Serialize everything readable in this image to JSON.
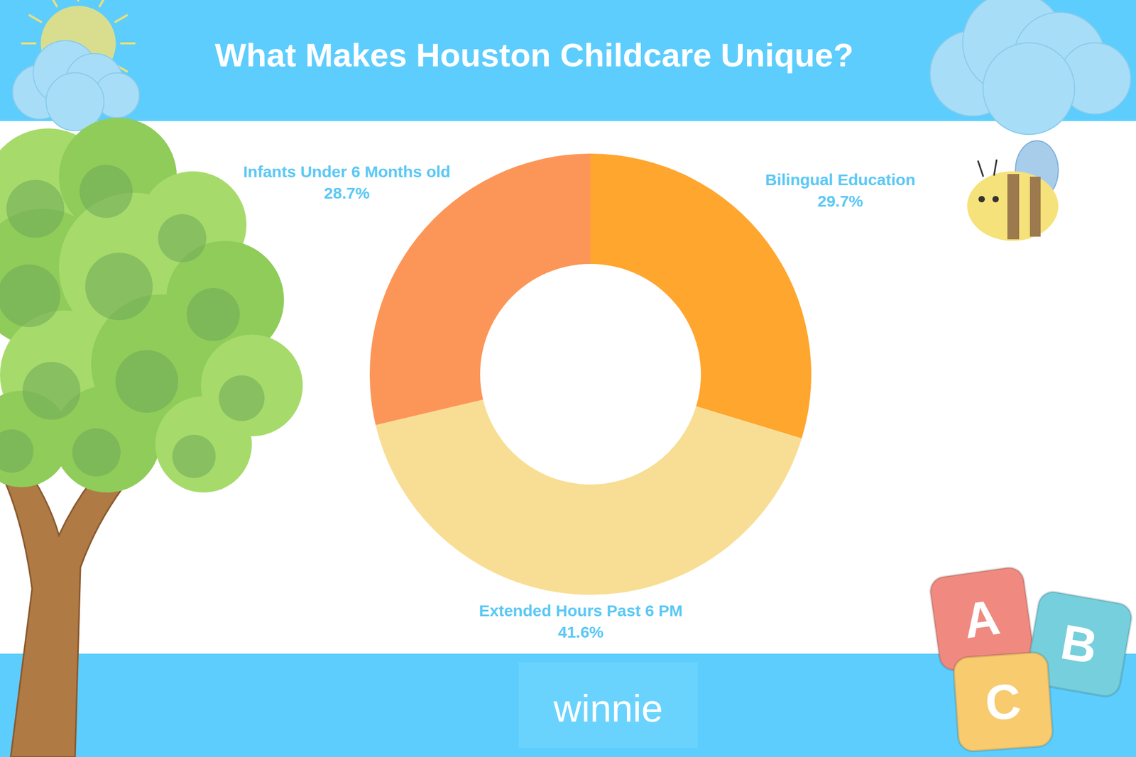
{
  "chart_data": {
    "type": "donut",
    "title": "What Makes Houston Childcare Unique?",
    "categories": [
      "Bilingual Education",
      "Extended Hours Past 6 PM",
      "Infants Under 6 Months old"
    ],
    "values": [
      29.7,
      41.6,
      28.7
    ],
    "value_labels": [
      "29.7%",
      "41.6%",
      "28.7%"
    ],
    "colors": [
      "#FFA62E",
      "#F8DE94",
      "#FC9658"
    ],
    "data_labels": true
  },
  "logo": "winnie",
  "blocks": [
    "A",
    "B",
    "C"
  ]
}
